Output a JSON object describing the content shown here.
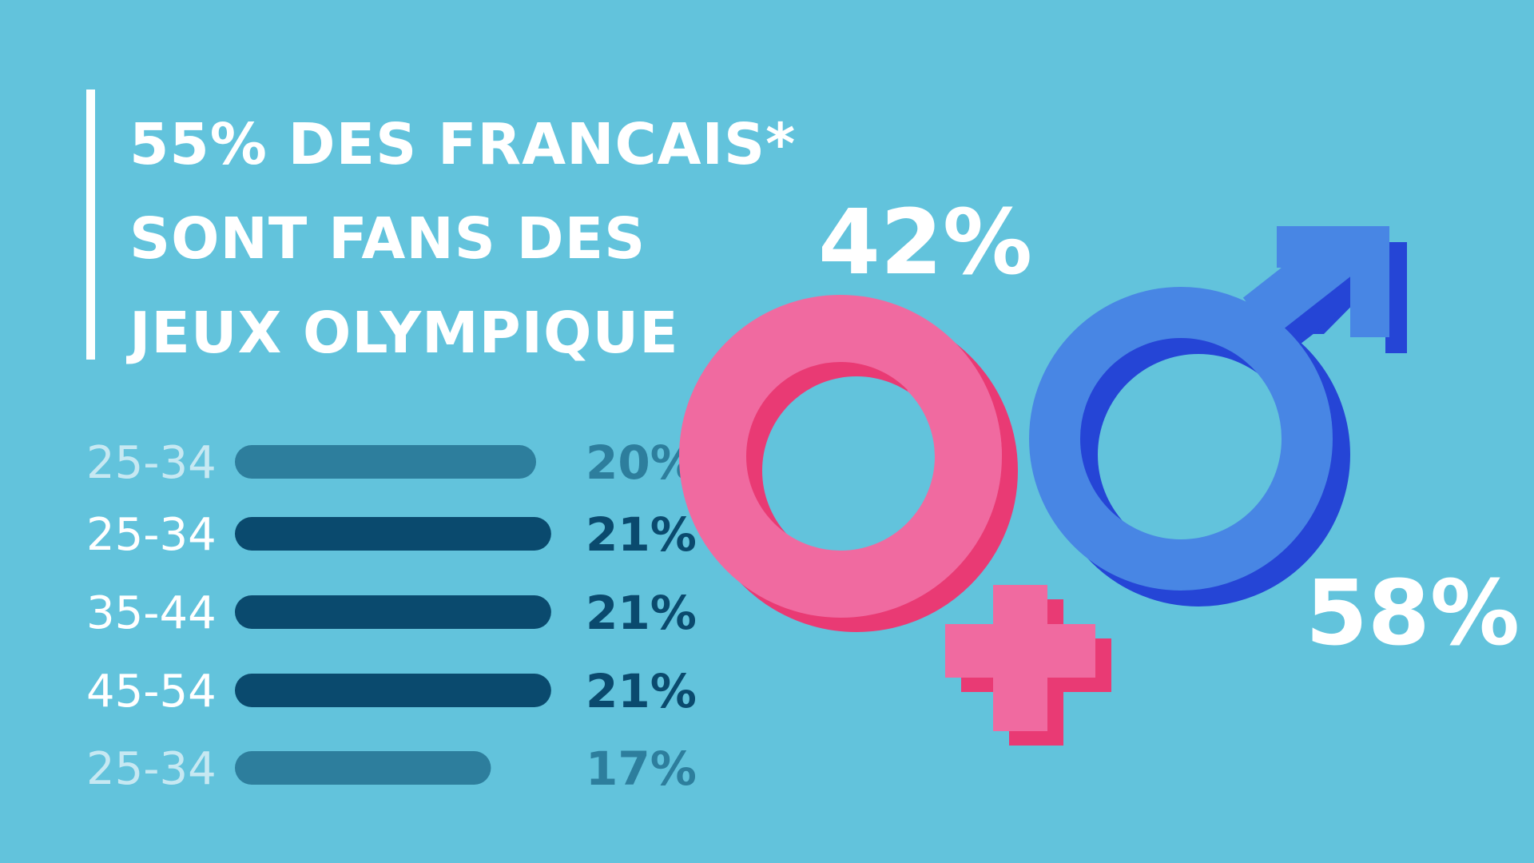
{
  "title_lines": [
    "55% DES FRANCAIS*",
    "SONT FANS DES",
    "JEUX OLYMPIQUE"
  ],
  "colors": {
    "background": "#62c3dc",
    "bar_faded": "#2d7e9d",
    "bar_strong": "#0a4a6e",
    "label_faded": "#c6e8f2",
    "label_strong": "#ffffff",
    "female": "#f06aa0",
    "female_side": "#e93a74",
    "male": "#4886e4",
    "male_side": "#2545d6"
  },
  "chart_data": [
    {
      "type": "bar",
      "orientation": "horizontal",
      "categories": [
        "25-34",
        "25-34",
        "35-44",
        "45-54",
        "25-34"
      ],
      "values": [
        20,
        21,
        21,
        21,
        17
      ],
      "value_labels": [
        "20%",
        "21%",
        "21%",
        "21%",
        "17%"
      ],
      "highlighted": [
        false,
        true,
        true,
        true,
        false
      ],
      "unit": "%"
    },
    {
      "type": "pie",
      "categories": [
        "female-symbol",
        "male-symbol"
      ],
      "values": [
        42,
        58
      ],
      "value_labels": [
        "42%",
        "58%"
      ]
    }
  ]
}
